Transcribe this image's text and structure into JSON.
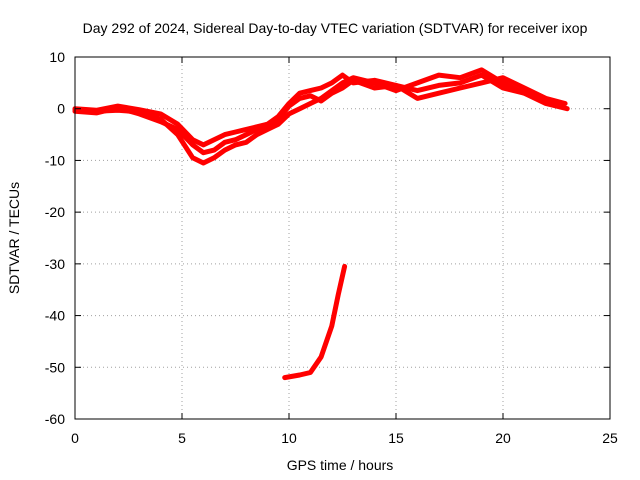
{
  "chart_data": {
    "type": "line",
    "title": "Day 292 of 2024, Sidereal Day-to-day VTEC variation (SDTVAR) for receiver ixop",
    "xlabel": "GPS time / hours",
    "ylabel": "SDTVAR / TECUs",
    "xlim": [
      0,
      25
    ],
    "ylim": [
      -60,
      10
    ],
    "xticks": [
      0,
      5,
      10,
      15,
      20,
      25
    ],
    "yticks": [
      10,
      0,
      -10,
      -20,
      -30,
      -40,
      -50,
      -60
    ],
    "grid": true,
    "legend": "none",
    "series_color": "#ff0000",
    "series": [
      {
        "name": "trace-a",
        "points": [
          [
            0,
            -0.5
          ],
          [
            1,
            -0.8
          ],
          [
            2,
            0.2
          ],
          [
            3,
            -1
          ],
          [
            4,
            -2.5
          ],
          [
            4.8,
            -4
          ],
          [
            5.5,
            -7
          ],
          [
            6,
            -8.5
          ],
          [
            6.5,
            -8
          ],
          [
            7,
            -6.5
          ],
          [
            7.5,
            -6
          ],
          [
            8,
            -5
          ],
          [
            8.5,
            -4
          ],
          [
            9,
            -3
          ],
          [
            9.5,
            -2
          ],
          [
            10,
            0.5
          ],
          [
            10.5,
            2
          ],
          [
            11,
            2.5
          ],
          [
            11.5,
            1.5
          ],
          [
            12,
            3
          ],
          [
            12.5,
            4
          ],
          [
            13,
            5.5
          ],
          [
            14,
            4
          ],
          [
            15,
            4.5
          ],
          [
            16,
            3.5
          ],
          [
            17,
            4.5
          ],
          [
            18,
            5
          ],
          [
            19,
            6.5
          ],
          [
            20,
            4
          ],
          [
            21,
            3
          ],
          [
            22,
            1.5
          ],
          [
            22.8,
            0.5
          ]
        ]
      },
      {
        "name": "trace-b",
        "points": [
          [
            0,
            -0.2
          ],
          [
            1,
            -0.5
          ],
          [
            2,
            -0.3
          ],
          [
            3,
            -0.6
          ],
          [
            4,
            -2
          ],
          [
            4.8,
            -5
          ],
          [
            5.5,
            -9.5
          ],
          [
            6,
            -10.5
          ],
          [
            6.5,
            -9.5
          ],
          [
            7,
            -8
          ],
          [
            7.5,
            -7
          ],
          [
            8,
            -6.5
          ],
          [
            8.5,
            -5
          ],
          [
            9,
            -4
          ],
          [
            9.5,
            -3
          ],
          [
            10,
            -1
          ],
          [
            10.5,
            0
          ],
          [
            11,
            1
          ],
          [
            11.5,
            2
          ],
          [
            12,
            3.5
          ],
          [
            12.5,
            5
          ],
          [
            13,
            6
          ],
          [
            14,
            5
          ],
          [
            15,
            3.5
          ],
          [
            16,
            5
          ],
          [
            17,
            6.5
          ],
          [
            18,
            6
          ],
          [
            19,
            7.5
          ],
          [
            20,
            5
          ],
          [
            21,
            3
          ],
          [
            22,
            1
          ],
          [
            23,
            0
          ]
        ]
      },
      {
        "name": "trace-c",
        "points": [
          [
            0,
            0
          ],
          [
            1,
            -0.3
          ],
          [
            2,
            0.5
          ],
          [
            3,
            -0.2
          ],
          [
            4,
            -1
          ],
          [
            4.8,
            -3
          ],
          [
            5.5,
            -6
          ],
          [
            6,
            -7
          ],
          [
            6.5,
            -6
          ],
          [
            7,
            -5
          ],
          [
            7.5,
            -4.5
          ],
          [
            8,
            -4
          ],
          [
            8.5,
            -3.5
          ],
          [
            9,
            -3
          ],
          [
            9.5,
            -1.5
          ],
          [
            10,
            1
          ],
          [
            10.5,
            3
          ],
          [
            11,
            3.5
          ],
          [
            11.5,
            4
          ],
          [
            12,
            5
          ],
          [
            12.5,
            6.5
          ],
          [
            13,
            5
          ],
          [
            14,
            5.5
          ],
          [
            15,
            4.5
          ],
          [
            16,
            2
          ],
          [
            17,
            3
          ],
          [
            18,
            4
          ],
          [
            19,
            5
          ],
          [
            20,
            6
          ],
          [
            21,
            4
          ],
          [
            22,
            2
          ],
          [
            22.9,
            1
          ]
        ]
      },
      {
        "name": "trace-d",
        "points": [
          [
            9.8,
            -52
          ],
          [
            10.5,
            -51.5
          ],
          [
            11,
            -51
          ],
          [
            11.5,
            -48
          ],
          [
            12,
            -42
          ],
          [
            12.3,
            -36
          ],
          [
            12.6,
            -30.5
          ]
        ]
      }
    ]
  }
}
